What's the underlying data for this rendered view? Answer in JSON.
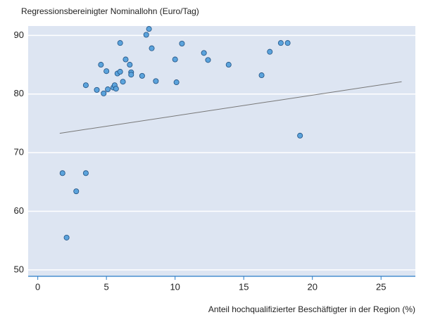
{
  "chart_data": {
    "type": "scatter",
    "title": "Regressionsbereinigter Nominallohn (Euro/Tag)",
    "x_label": "Anteil hochqualifizierter Beschäftigter in der Region (%)",
    "x": [
      1.8,
      2.1,
      2.8,
      3.5,
      3.5,
      4.3,
      4.6,
      4.8,
      5.0,
      5.1,
      5.5,
      5.6,
      5.7,
      5.8,
      6.0,
      6.0,
      6.2,
      6.4,
      6.7,
      6.8,
      6.8,
      7.6,
      7.9,
      8.1,
      8.3,
      8.6,
      10.0,
      10.1,
      10.5,
      12.1,
      12.4,
      13.9,
      16.3,
      16.9,
      17.7,
      18.2,
      19.1
    ],
    "values": [
      66.5,
      55.5,
      63.4,
      66.5,
      81.5,
      80.7,
      85.0,
      80.1,
      83.9,
      80.8,
      81.1,
      81.5,
      80.9,
      83.5,
      88.7,
      83.8,
      82.1,
      85.9,
      85.0,
      83.7,
      83.3,
      83.1,
      90.1,
      91.1,
      87.8,
      82.2,
      85.9,
      82.0,
      88.6,
      87.0,
      85.8,
      85.0,
      83.2,
      87.2,
      88.7,
      88.7,
      72.9
    ],
    "color": "#5ba3dc",
    "trendline": {
      "x": [
        1.6,
        26.5
      ],
      "y": [
        73.3,
        82.1
      ],
      "color": "#777777"
    },
    "xlim": [
      -0.7,
      27.5
    ],
    "ylim": [
      48.9,
      91.6
    ],
    "xticks": [
      0,
      5,
      10,
      15,
      20,
      25
    ],
    "yticks": [
      50,
      60,
      70,
      80,
      90
    ],
    "grid": true
  }
}
